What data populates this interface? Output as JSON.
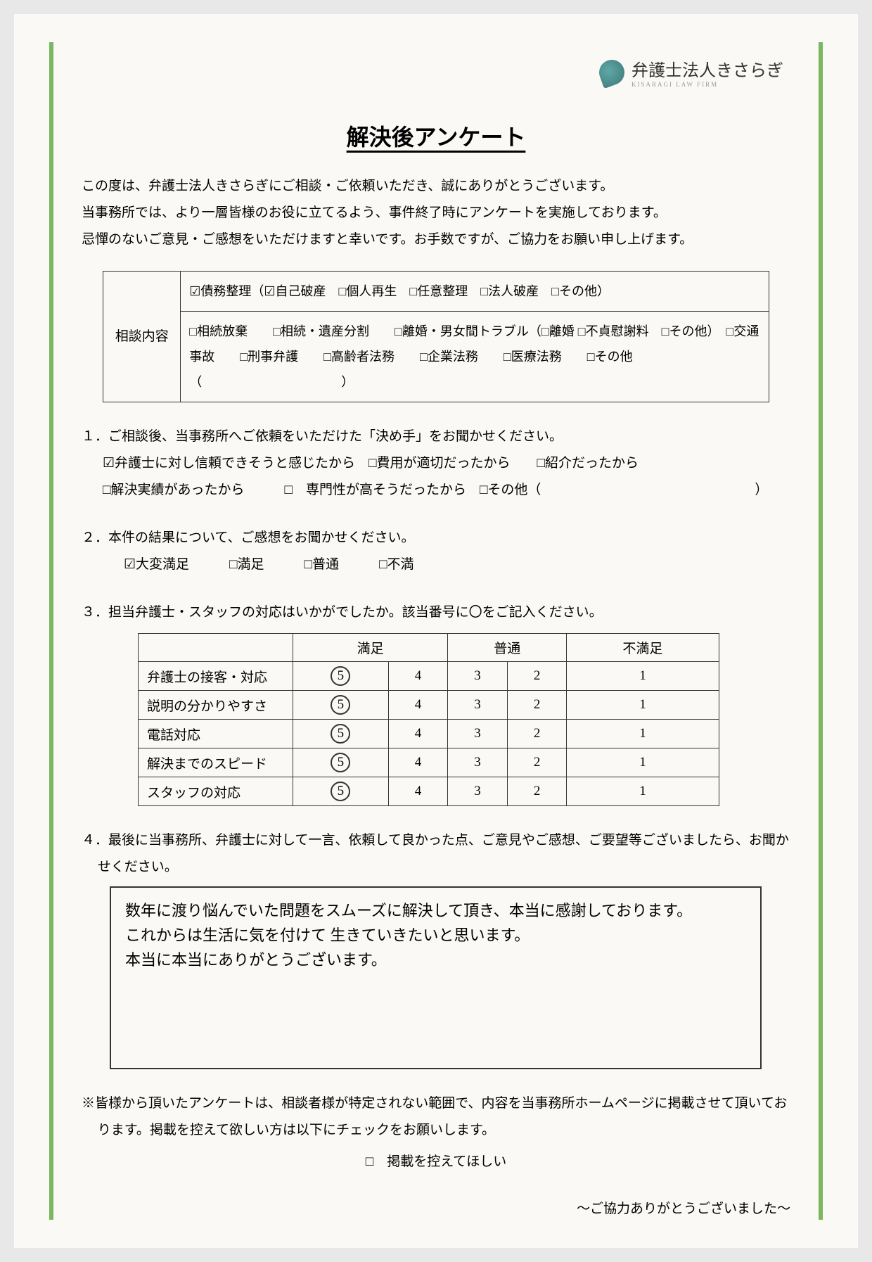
{
  "logo": {
    "company_name": "弁護士法人きさらぎ",
    "subtitle": "KISARAGI LAW FIRM"
  },
  "title": "解決後アンケート",
  "intro_lines": [
    "この度は、弁護士法人きさらぎにご相談・ご依頼いただき、誠にありがとうございます。",
    "当事務所では、より一層皆様のお役に立てるよう、事件終了時にアンケートを実施しております。",
    "忌憚のないご意見・ご感想をいただけますと幸いです。お手数ですが、ご協力をお願い申し上げます。"
  ],
  "consultation": {
    "label": "相談内容",
    "row1": "☑債務整理（☑自己破産　□個人再生　□任意整理　□法人破産　□その他）",
    "row2": "□相続放棄　　□相続・遺産分割　　□離婚・男女間トラブル（□離婚 □不貞慰謝料　□その他）　□交通事故　　□刑事弁護　　□高齢者法務　　□企業法務　　□医療法務　　□その他（　　　　　　　　　　　）"
  },
  "q1": {
    "text": "１．ご相談後、当事務所へご依頼をいただけた「決め手」をお聞かせください。",
    "options_line1": "☑弁護士に対し信頼できそうと感じたから　□費用が適切だったから　　□紹介だったから",
    "options_line2": "□解決実績があったから　　　□　専門性が高そうだったから　□その他（　　　　　　　　　　　　　　　　）"
  },
  "q2": {
    "text": "２．本件の結果について、ご感想をお聞かせください。",
    "options": "☑大変満足　　　□満足　　　□普通　　　□不満"
  },
  "q3": {
    "text": "３．担当弁護士・スタッフの対応はいかがでしたか。該当番号に〇をご記入ください。",
    "headers": [
      "",
      "満足",
      "",
      "普通",
      "",
      "不満足"
    ],
    "rows": [
      {
        "label": "弁護士の接客・対応",
        "selected": 5,
        "values": [
          5,
          4,
          3,
          2,
          1
        ]
      },
      {
        "label": "説明の分かりやすさ",
        "selected": 5,
        "values": [
          5,
          4,
          3,
          2,
          1
        ]
      },
      {
        "label": "電話対応",
        "selected": 5,
        "values": [
          5,
          4,
          3,
          2,
          1
        ]
      },
      {
        "label": "解決までのスピード",
        "selected": 5,
        "values": [
          5,
          4,
          3,
          2,
          1
        ]
      },
      {
        "label": "スタッフの対応",
        "selected": 5,
        "values": [
          5,
          4,
          3,
          2,
          1
        ]
      }
    ]
  },
  "q4": {
    "text": "４．最後に当事務所、弁護士に対して一言、依頼して良かった点、ご意見やご感想、ご要望等ございましたら、お聞かせください。",
    "handwritten_lines": [
      "数年に渡り悩んでいた問題をスムーズに解決して頂き、本当に感謝しております。",
      "これからは生活に気を付けて 生きていきたいと思います。",
      "本当に本当にありがとうございます。"
    ]
  },
  "footer": {
    "note_line1": "※皆様から頂いたアンケートは、相談者様が特定されない範囲で、内容を当事務所ホームページに掲載させて頂いております。掲載を控えて欲しい方は以下にチェックをお願いします。",
    "checkbox_label": "□　掲載を控えてほしい",
    "thanks": "～ご協力ありがとうございました～"
  }
}
